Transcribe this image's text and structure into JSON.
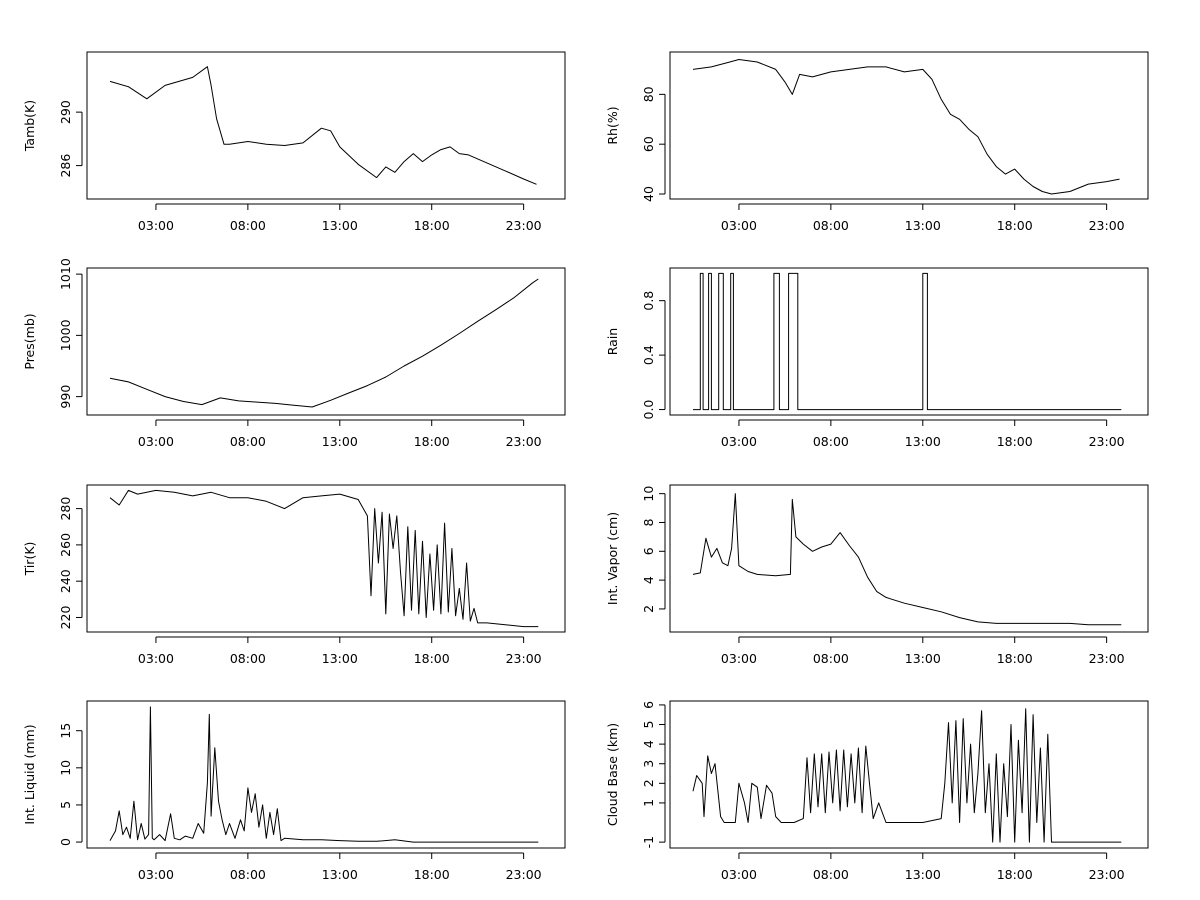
{
  "chart_data": [
    {
      "type": "line",
      "title": "",
      "xlabel": "",
      "ylabel": "Tamb(K)",
      "xlim": [
        -0.75,
        25.25
      ],
      "ylim": [
        283.5,
        294.5
      ],
      "xticks": [
        3,
        8,
        13,
        18,
        23
      ],
      "xtick_labels": [
        "03:00",
        "08:00",
        "13:00",
        "18:00",
        "23:00"
      ],
      "yticks": [
        286,
        290
      ],
      "ytick_labels": [
        "286",
        "290"
      ],
      "series": [
        {
          "name": "Tamb(K)",
          "x": [
            0.5,
            1.5,
            2.5,
            3.5,
            5.0,
            5.8,
            6.0,
            6.3,
            6.7,
            7.0,
            8.0,
            9.0,
            10.0,
            11.0,
            12.0,
            12.5,
            13.0,
            14.0,
            15.0,
            15.5,
            16.0,
            16.5,
            17.0,
            17.5,
            18.0,
            18.5,
            19.0,
            19.5,
            20.0,
            21.0,
            22.0,
            23.0,
            23.7
          ],
          "values": [
            292.3,
            291.9,
            291.0,
            292.0,
            292.6,
            293.4,
            292.0,
            289.5,
            287.6,
            287.6,
            287.8,
            287.6,
            287.5,
            287.7,
            288.8,
            288.6,
            287.4,
            286.1,
            285.1,
            285.9,
            285.5,
            286.3,
            286.9,
            286.3,
            286.8,
            287.2,
            287.4,
            286.9,
            286.8,
            286.2,
            285.6,
            285.0,
            284.6
          ]
        }
      ]
    },
    {
      "type": "line",
      "title": "",
      "xlabel": "",
      "ylabel": "Rh(%)",
      "xlim": [
        -0.75,
        25.25
      ],
      "ylim": [
        38,
        97
      ],
      "xticks": [
        3,
        8,
        13,
        18,
        23
      ],
      "xtick_labels": [
        "03:00",
        "08:00",
        "13:00",
        "18:00",
        "23:00"
      ],
      "yticks": [
        40,
        60,
        80
      ],
      "ytick_labels": [
        "40",
        "60",
        "80"
      ],
      "series": [
        {
          "name": "Rh(%)",
          "x": [
            0.5,
            1.5,
            2.5,
            3.0,
            4.0,
            5.0,
            5.5,
            5.9,
            6.3,
            7.0,
            8.0,
            9.0,
            10.0,
            11.0,
            12.0,
            13.0,
            13.5,
            14.0,
            14.5,
            15.0,
            15.5,
            16.0,
            16.5,
            17.0,
            17.5,
            18.0,
            18.5,
            19.0,
            19.5,
            20.0,
            21.0,
            22.0,
            23.0,
            23.7
          ],
          "values": [
            90,
            91,
            93,
            94,
            93,
            90,
            85,
            80,
            88,
            87,
            89,
            90,
            91,
            91,
            89,
            90,
            86,
            78,
            72,
            70,
            66,
            63,
            56,
            51,
            48,
            50,
            46,
            43,
            41,
            40,
            41,
            44,
            45,
            46
          ]
        }
      ]
    },
    {
      "type": "line",
      "title": "",
      "xlabel": "",
      "ylabel": "Pres(mb)",
      "xlim": [
        -0.75,
        25.25
      ],
      "ylim": [
        987,
        1011
      ],
      "xticks": [
        3,
        8,
        13,
        18,
        23
      ],
      "xtick_labels": [
        "03:00",
        "08:00",
        "13:00",
        "18:00",
        "23:00"
      ],
      "yticks": [
        990,
        1000,
        1010
      ],
      "ytick_labels": [
        "990",
        "1000",
        "1010"
      ],
      "series": [
        {
          "name": "Pres(mb)",
          "x": [
            0.5,
            1.5,
            2.5,
            3.5,
            4.5,
            5.5,
            6.5,
            7.5,
            8.5,
            9.5,
            10.5,
            11.5,
            12.5,
            13.5,
            14.5,
            15.5,
            16.5,
            17.5,
            18.5,
            19.5,
            20.5,
            21.5,
            22.5,
            23.5,
            23.8
          ],
          "values": [
            993.0,
            992.4,
            991.2,
            990.0,
            989.2,
            988.7,
            989.8,
            989.3,
            989.1,
            988.9,
            988.6,
            988.3,
            989.4,
            990.6,
            991.8,
            993.2,
            995.0,
            996.6,
            998.4,
            1000.3,
            1002.3,
            1004.2,
            1006.2,
            1008.6,
            1009.2
          ]
        }
      ]
    },
    {
      "type": "line",
      "title": "",
      "xlabel": "",
      "ylabel": "Rain",
      "xlim": [
        -0.75,
        25.25
      ],
      "ylim": [
        -0.04,
        1.04
      ],
      "xticks": [
        3,
        8,
        13,
        18,
        23
      ],
      "xtick_labels": [
        "03:00",
        "08:00",
        "13:00",
        "18:00",
        "23:00"
      ],
      "yticks": [
        0.0,
        0.4,
        0.8
      ],
      "ytick_labels": [
        "0.0",
        "0.4",
        "0.8"
      ],
      "series": [
        {
          "name": "Rain",
          "x": [
            0.5,
            0.9,
            0.9,
            1.05,
            1.05,
            1.35,
            1.35,
            1.5,
            1.5,
            1.9,
            1.9,
            2.15,
            2.15,
            2.55,
            2.55,
            2.7,
            2.7,
            2.9,
            2.9,
            4.9,
            4.9,
            5.2,
            5.2,
            5.7,
            5.7,
            6.2,
            6.2,
            13.0,
            13.0,
            13.25,
            13.25,
            23.8
          ],
          "values": [
            0,
            0,
            1,
            1,
            0,
            0,
            1,
            1,
            0,
            0,
            1,
            1,
            0,
            0,
            1,
            1,
            0,
            0,
            0,
            0,
            1,
            1,
            0,
            0,
            1,
            1,
            0,
            0,
            1,
            1,
            0,
            0
          ]
        }
      ]
    },
    {
      "type": "line",
      "title": "",
      "xlabel": "",
      "ylabel": "Tir(K)",
      "xlim": [
        -0.75,
        25.25
      ],
      "ylim": [
        212,
        293
      ],
      "xticks": [
        3,
        8,
        13,
        18,
        23
      ],
      "xtick_labels": [
        "03:00",
        "08:00",
        "13:00",
        "18:00",
        "23:00"
      ],
      "yticks": [
        220,
        240,
        260,
        280
      ],
      "ytick_labels": [
        "220",
        "240",
        "260",
        "280"
      ],
      "series": [
        {
          "name": "Tir(K)",
          "x": [
            0.5,
            1.0,
            1.5,
            2.0,
            3.0,
            4.0,
            5.0,
            6.0,
            7.0,
            8.0,
            9.0,
            10.0,
            11.0,
            12.0,
            13.0,
            14.0,
            14.5,
            14.7,
            14.9,
            15.1,
            15.3,
            15.5,
            15.7,
            15.9,
            16.1,
            16.3,
            16.5,
            16.7,
            16.9,
            17.1,
            17.3,
            17.5,
            17.7,
            17.9,
            18.1,
            18.3,
            18.5,
            18.7,
            18.9,
            19.1,
            19.3,
            19.5,
            19.7,
            19.9,
            20.1,
            20.3,
            20.5,
            21.0,
            22.0,
            23.0,
            23.8
          ],
          "values": [
            286,
            282,
            290,
            288,
            290,
            289,
            287,
            289,
            286,
            286,
            284,
            280,
            286,
            287,
            288,
            285,
            276,
            232,
            280,
            250,
            278,
            222,
            277,
            258,
            276,
            245,
            221,
            270,
            224,
            268,
            222,
            262,
            220,
            255,
            224,
            260,
            222,
            272,
            223,
            258,
            221,
            236,
            219,
            250,
            218,
            225,
            217,
            217,
            216,
            215,
            215
          ]
        }
      ]
    },
    {
      "type": "line",
      "title": "",
      "xlabel": "",
      "ylabel": "Int. Vapor (cm)",
      "xlim": [
        -0.75,
        25.25
      ],
      "ylim": [
        0.4,
        10.6
      ],
      "xticks": [
        3,
        8,
        13,
        18,
        23
      ],
      "xtick_labels": [
        "03:00",
        "08:00",
        "13:00",
        "18:00",
        "23:00"
      ],
      "yticks": [
        2,
        4,
        6,
        8,
        10
      ],
      "ytick_labels": [
        "2",
        "4",
        "6",
        "8",
        "10"
      ],
      "series": [
        {
          "name": "Int. Vapor (cm)",
          "x": [
            0.5,
            0.9,
            1.2,
            1.5,
            1.8,
            2.1,
            2.4,
            2.6,
            2.8,
            3.0,
            3.5,
            4.0,
            5.0,
            5.8,
            5.9,
            6.1,
            6.5,
            7.0,
            7.5,
            8.0,
            8.5,
            9.0,
            9.5,
            10.0,
            10.5,
            11.0,
            12.0,
            13.0,
            14.0,
            15.0,
            16.0,
            17.0,
            18.0,
            19.0,
            20.0,
            21.0,
            22.0,
            23.0,
            23.8
          ],
          "values": [
            4.4,
            4.5,
            6.9,
            5.6,
            6.2,
            5.2,
            5.0,
            6.2,
            10.0,
            5.0,
            4.6,
            4.4,
            4.3,
            4.4,
            9.6,
            7.0,
            6.5,
            6.0,
            6.3,
            6.5,
            7.3,
            6.4,
            5.6,
            4.2,
            3.2,
            2.8,
            2.4,
            2.1,
            1.8,
            1.4,
            1.1,
            1.0,
            1.0,
            1.0,
            1.0,
            1.0,
            0.9,
            0.9,
            0.9
          ]
        }
      ]
    },
    {
      "type": "line",
      "title": "",
      "xlabel": "",
      "ylabel": "Int. Liquid (mm)",
      "xlim": [
        -0.75,
        25.25
      ],
      "ylim": [
        -0.8,
        19
      ],
      "xticks": [
        3,
        8,
        13,
        18,
        23
      ],
      "xtick_labels": [
        "03:00",
        "08:00",
        "13:00",
        "18:00",
        "23:00"
      ],
      "yticks": [
        0,
        5,
        10,
        15
      ],
      "ytick_labels": [
        "0",
        "5",
        "10",
        "15"
      ],
      "series": [
        {
          "name": "Int. Liquid (mm)",
          "x": [
            0.5,
            0.8,
            1.0,
            1.2,
            1.4,
            1.6,
            1.8,
            2.0,
            2.2,
            2.4,
            2.6,
            2.7,
            2.8,
            2.9,
            3.2,
            3.5,
            3.8,
            4.0,
            4.3,
            4.6,
            5.0,
            5.3,
            5.6,
            5.8,
            5.9,
            6.0,
            6.2,
            6.4,
            6.6,
            6.8,
            7.0,
            7.3,
            7.6,
            7.8,
            8.0,
            8.2,
            8.4,
            8.6,
            8.8,
            9.0,
            9.2,
            9.4,
            9.6,
            9.8,
            10.0,
            11.0,
            12.0,
            13.0,
            14.0,
            15.0,
            16.0,
            17.0,
            18.0,
            23.8
          ],
          "values": [
            0.2,
            1.5,
            4.2,
            1.0,
            2.0,
            0.5,
            5.5,
            0.3,
            2.5,
            0.4,
            1.0,
            18.2,
            0.5,
            0.3,
            1.0,
            0.2,
            3.8,
            0.5,
            0.3,
            0.8,
            0.5,
            2.5,
            1.2,
            8.0,
            17.2,
            3.5,
            12.7,
            5.5,
            3.0,
            1.0,
            2.5,
            0.5,
            3.0,
            1.5,
            7.3,
            4.0,
            6.5,
            2.0,
            5.0,
            0.5,
            4.0,
            1.0,
            4.5,
            0.2,
            0.5,
            0.3,
            0.3,
            0.2,
            0.1,
            0.1,
            0.3,
            0.0,
            0.0,
            0.0
          ]
        }
      ]
    },
    {
      "type": "line",
      "title": "",
      "xlabel": "",
      "ylabel": "Cloud Base (km)",
      "xlim": [
        -0.75,
        25.25
      ],
      "ylim": [
        -1.3,
        6.2
      ],
      "xticks": [
        3,
        8,
        13,
        18,
        23
      ],
      "xtick_labels": [
        "03:00",
        "08:00",
        "13:00",
        "18:00",
        "23:00"
      ],
      "yticks": [
        -1,
        1,
        2,
        3,
        4,
        5,
        6
      ],
      "ytick_labels": [
        "-1",
        "1",
        "2",
        "3",
        "4",
        "5",
        "6"
      ],
      "series": [
        {
          "name": "Cloud Base (km)",
          "x": [
            0.5,
            0.7,
            1.0,
            1.1,
            1.3,
            1.5,
            1.7,
            2.0,
            2.2,
            2.5,
            2.8,
            3.0,
            3.3,
            3.5,
            3.7,
            4.0,
            4.2,
            4.5,
            4.8,
            5.0,
            5.3,
            5.5,
            6.0,
            6.5,
            6.7,
            6.9,
            7.1,
            7.3,
            7.5,
            7.7,
            7.9,
            8.1,
            8.3,
            8.5,
            8.7,
            8.9,
            9.1,
            9.3,
            9.5,
            9.7,
            9.9,
            10.1,
            10.3,
            10.6,
            11.0,
            11.5,
            12.0,
            13.0,
            14.0,
            14.2,
            14.4,
            14.6,
            14.8,
            15.0,
            15.2,
            15.4,
            15.6,
            15.8,
            16.0,
            16.2,
            16.4,
            16.6,
            16.8,
            17.0,
            17.2,
            17.4,
            17.6,
            17.8,
            18.0,
            18.2,
            18.4,
            18.6,
            18.8,
            19.0,
            19.2,
            19.4,
            19.6,
            19.8,
            20.0,
            20.2,
            20.4,
            21.0,
            22.0,
            23.0,
            23.8
          ],
          "values": [
            1.6,
            2.4,
            2.0,
            0.3,
            3.4,
            2.5,
            3.0,
            0.3,
            0.0,
            0.0,
            0.0,
            2.0,
            1.0,
            0.0,
            2.0,
            1.8,
            0.2,
            1.9,
            1.5,
            0.3,
            0.0,
            0.0,
            0.0,
            0.2,
            3.3,
            0.5,
            3.5,
            0.8,
            3.5,
            0.5,
            3.6,
            1.0,
            3.7,
            0.6,
            3.7,
            0.8,
            3.5,
            1.0,
            3.8,
            0.5,
            3.9,
            2.0,
            0.2,
            1.0,
            0.0,
            0.0,
            0.0,
            0.0,
            0.2,
            2.0,
            5.1,
            1.0,
            5.2,
            0.0,
            5.3,
            1.0,
            4.0,
            0.5,
            2.5,
            5.7,
            0.5,
            3.0,
            -1.0,
            3.5,
            -1.0,
            3.0,
            0.3,
            5.0,
            -1.0,
            4.2,
            0.5,
            5.8,
            -1.0,
            5.5,
            0.0,
            3.8,
            -1.0,
            4.5,
            -1.0,
            -1.0,
            -1.0,
            -1.0,
            -1.0,
            -1.0,
            -1.0
          ]
        }
      ]
    }
  ]
}
